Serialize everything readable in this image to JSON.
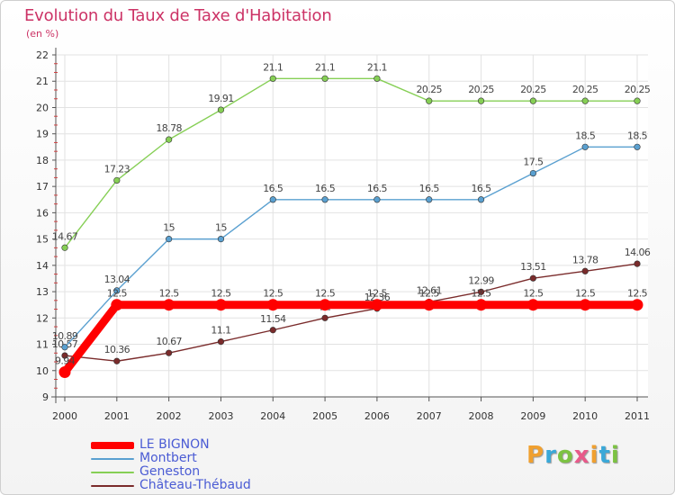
{
  "header": {
    "title": "Evolution du Taux de Taxe d'Habitation",
    "subtitle": "(en %)"
  },
  "logo": {
    "letters": [
      "P",
      "r",
      "o",
      "x",
      "i",
      "t",
      "i"
    ],
    "colors": [
      "#f0a030",
      "#3aa8d8",
      "#7cc242",
      "#e85a8a",
      "#f0a030",
      "#3aa8d8",
      "#7cc242"
    ]
  },
  "chart_data": {
    "type": "line",
    "x": [
      "2000",
      "2001",
      "2002",
      "2003",
      "2004",
      "2005",
      "2006",
      "2007",
      "2008",
      "2009",
      "2010",
      "2011"
    ],
    "ylim": [
      9,
      22
    ],
    "yticks": [
      9,
      10,
      11,
      12,
      13,
      14,
      15,
      16,
      17,
      18,
      19,
      20,
      21,
      22
    ],
    "grid": true,
    "legend_position": "bottom-left",
    "series": [
      {
        "name": "Château-Thébaud",
        "color": "#7a2b2b",
        "values": [
          10.57,
          10.36,
          10.67,
          11.1,
          11.54,
          12,
          12.36,
          12.61,
          12.99,
          13.51,
          13.78,
          14.06
        ],
        "labels": [
          "10.57",
          "10.36",
          "10.67",
          "11.1",
          "11.54",
          "12",
          "12.36",
          "12.61",
          "12.99",
          "13.51",
          "13.78",
          "14.06"
        ]
      },
      {
        "name": "Geneston",
        "color": "#86cf55",
        "values": [
          14.67,
          17.23,
          18.78,
          19.91,
          21.1,
          21.1,
          21.1,
          20.25,
          20.25,
          20.25,
          20.25,
          20.25
        ],
        "labels": [
          "14.67",
          "17.23",
          "18.78",
          "19.91",
          "21.1",
          "21.1",
          "21.1",
          "20.25",
          "20.25",
          "20.25",
          "20.25",
          "20.25"
        ]
      },
      {
        "name": "Montbert",
        "color": "#5aa0d0",
        "values": [
          10.89,
          13.04,
          15,
          15,
          16.5,
          16.5,
          16.5,
          16.5,
          16.5,
          17.5,
          18.5,
          18.5
        ],
        "labels": [
          "10.89",
          "13.04",
          "15",
          "15",
          "16.5",
          "16.5",
          "16.5",
          "16.5",
          "16.5",
          "17.5",
          "18.5",
          "18.5"
        ]
      },
      {
        "name": "LE BIGNON",
        "color": "#ff0000",
        "values": [
          9.94,
          12.5,
          12.5,
          12.5,
          12.5,
          12.5,
          12.5,
          12.5,
          12.5,
          12.5,
          12.5,
          12.5
        ],
        "labels": [
          "9.94",
          "12.5",
          "12.5",
          "12.5",
          "12.5",
          "12.5",
          "12.5",
          "12.5",
          "12.5",
          "12.5",
          "12.5",
          "12.5"
        ]
      }
    ],
    "legend_order": [
      "LE BIGNON",
      "Montbert",
      "Geneston",
      "Château-Thébaud"
    ]
  }
}
